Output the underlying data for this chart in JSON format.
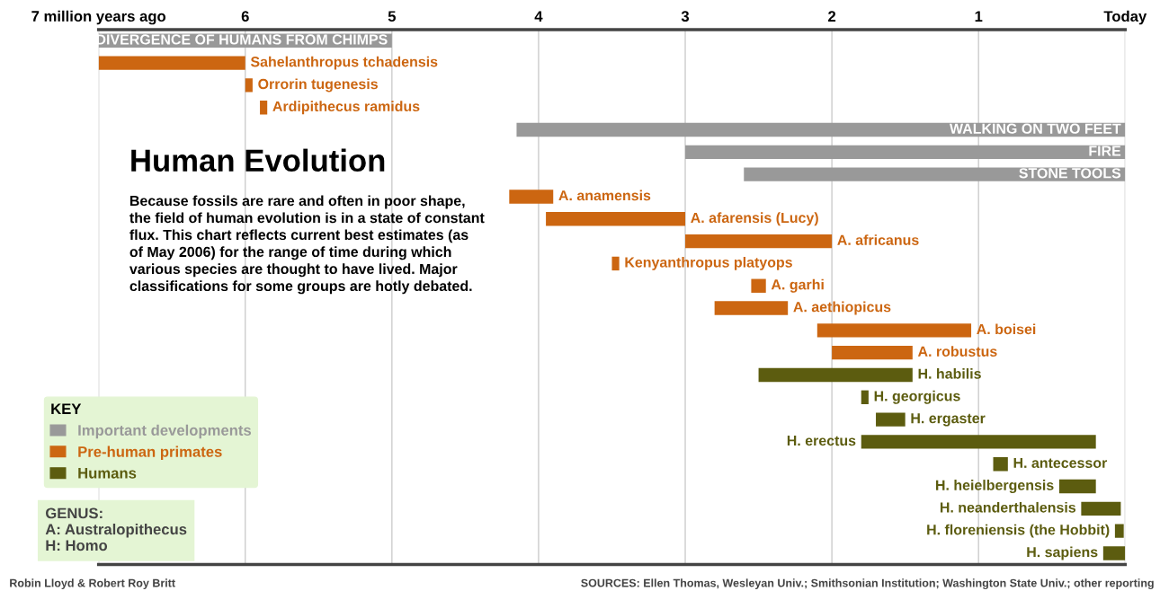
{
  "chart_data": {
    "type": "bar",
    "orientation": "horizontal",
    "title": "Human Evolution",
    "subtitle": "Because fossils are rare and often in poor shape,\nthe field of human evolution is in a state of constant\nflux. This chart reflects current best estimates (as\nof May 2006) for the range of time during which\nvarious species are thought to have lived. Major\nclassifications for some groups are hotly debated.",
    "categories": [
      "DIVERGENCE OF HUMANS FROM CHIMPS",
      "Sahelanthropus tchadensis",
      "Orrorin tugenesis",
      "Ardipithecus ramidus",
      "WALKING ON TWO FEET",
      "FIRE",
      "STONE TOOLS",
      "A. anamensis",
      "A. afarensis (Lucy)",
      "A. africanus",
      "Kenyanthropus platyops",
      "A. garhi",
      "A. aethiopicus",
      "A. boisei",
      "A. robustus",
      "H. habilis",
      "H. georgicus",
      "H. ergaster",
      "H. erectus",
      "H. antecessor",
      "H. heielbergensis",
      "H. neanderthalensis",
      "H. floreniensis (the Hobbit)",
      "H. sapiens"
    ],
    "series": [
      {
        "name": "Important developments",
        "color": "#999999",
        "values": [
          2,
          null,
          null,
          null,
          4.15,
          3,
          2.6,
          null,
          null,
          null,
          null,
          null,
          null,
          null,
          null,
          null,
          null,
          null,
          null,
          null,
          null,
          null,
          null,
          null
        ],
        "base": [
          5,
          null,
          null,
          null,
          0,
          0,
          0,
          null,
          null,
          null,
          null,
          null,
          null,
          null,
          null,
          null,
          null,
          null,
          null,
          null,
          null,
          null,
          null,
          null
        ]
      },
      {
        "name": "Pre-human primates",
        "color": "#cc6611",
        "values": [
          null,
          1,
          0.05,
          0.05,
          null,
          null,
          null,
          0.3,
          0.95,
          1,
          0.05,
          0.1,
          0.5,
          1.05,
          0.55,
          null,
          null,
          null,
          null,
          null,
          null,
          null,
          null,
          null
        ],
        "base": [
          null,
          6,
          5.95,
          5.85,
          null,
          null,
          null,
          3.9,
          3,
          2,
          3.45,
          2.45,
          2.3,
          1.05,
          1.45,
          null,
          null,
          null,
          null,
          null,
          null,
          null,
          null,
          null
        ]
      },
      {
        "name": "Humans",
        "color": "#5c5c0f",
        "values": [
          null,
          null,
          null,
          null,
          null,
          null,
          null,
          null,
          null,
          null,
          null,
          null,
          null,
          null,
          null,
          1.05,
          0.05,
          0.2,
          1.6,
          0.1,
          0.25,
          0.27,
          0.06,
          0.15
        ],
        "base": [
          null,
          null,
          null,
          null,
          null,
          null,
          null,
          null,
          null,
          null,
          null,
          null,
          null,
          null,
          null,
          1.45,
          1.75,
          1.5,
          0.2,
          0.8,
          0.2,
          0.03,
          0.01,
          0
        ]
      }
    ],
    "xlim": [
      7,
      0
    ],
    "xticks": [
      {
        "value": 7,
        "label": "7 million years ago"
      },
      6,
      5,
      4,
      3,
      2,
      1,
      {
        "value": 0,
        "label": "Today"
      }
    ],
    "grid": "x",
    "legend": "bottom left",
    "legend_title": "KEY",
    "annotations": [
      "GENUS:\nA: Australopithecus\nH: Homo",
      "Robin Lloyd & Robert Roy Britt",
      "SOURCES: Ellen Thomas, Wesleyan Univ.; Smithsonian Institution; Washington State Univ.; other reporting"
    ]
  }
}
